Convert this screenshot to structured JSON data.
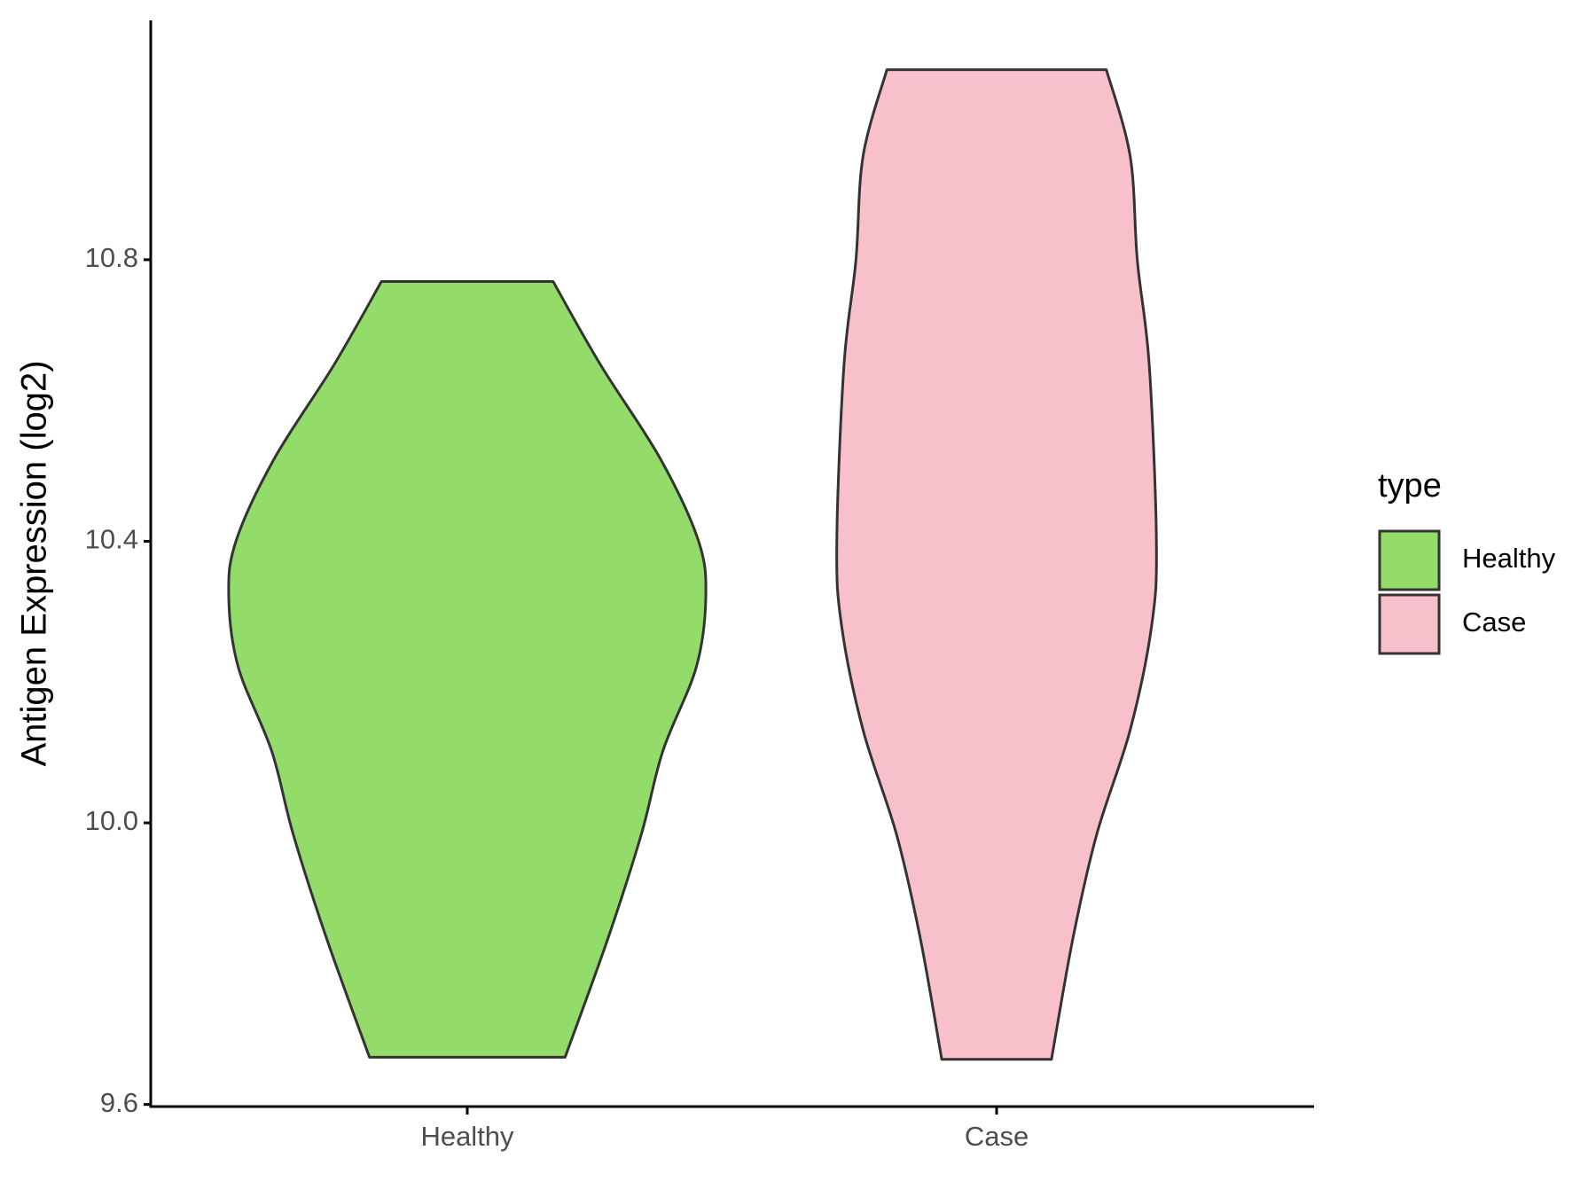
{
  "chart_data": {
    "type": "violin",
    "y_label": "Antigen Expression (log2)",
    "categories": [
      "Healthy",
      "Case"
    ],
    "series": [
      {
        "name": "Healthy",
        "color": "#94dc6a",
        "y": [
          10.769,
          10.65,
          10.517,
          10.4,
          10.32,
          10.221,
          10.102,
          9.984,
          9.836,
          9.667
        ],
        "width": [
          0.36,
          0.56,
          0.81,
          0.97,
          1.0,
          0.96,
          0.82,
          0.73,
          0.59,
          0.41
        ]
      },
      {
        "name": "Case",
        "color": "#f7c0cb",
        "y": [
          11.07,
          10.947,
          10.799,
          10.65,
          10.4,
          10.28,
          10.132,
          9.984,
          9.836,
          9.664
        ],
        "width": [
          0.46,
          0.56,
          0.59,
          0.64,
          0.67,
          0.65,
          0.56,
          0.42,
          0.32,
          0.23
        ]
      }
    ],
    "ylim": [
      9.597,
      11.14
    ],
    "yticks": [
      9.6,
      {
        "value": 10.0,
        "label": "10.0"
      },
      10.4,
      10.8
    ],
    "legend_title": "type",
    "legend_position": "right"
  }
}
